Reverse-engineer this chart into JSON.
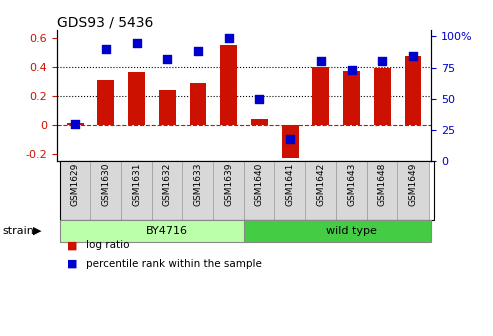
{
  "title": "GDS93 / 5436",
  "samples": [
    "GSM1629",
    "GSM1630",
    "GSM1631",
    "GSM1632",
    "GSM1633",
    "GSM1639",
    "GSM1640",
    "GSM1641",
    "GSM1642",
    "GSM1643",
    "GSM1648",
    "GSM1649"
  ],
  "log_ratio": [
    0.01,
    0.31,
    0.36,
    0.24,
    0.29,
    0.55,
    0.04,
    -0.23,
    0.4,
    0.37,
    0.39,
    0.47
  ],
  "percentile": [
    30,
    90,
    95,
    82,
    88,
    99,
    50,
    18,
    80,
    73,
    80,
    84
  ],
  "bar_color": "#cc1100",
  "dot_color": "#0000cc",
  "ylim_left": [
    -0.25,
    0.65
  ],
  "ylim_right": [
    0,
    105
  ],
  "yticks_left": [
    -0.2,
    0.0,
    0.2,
    0.4,
    0.6
  ],
  "ytick_labels_left": [
    "-0.2",
    "0",
    "0.2",
    "0.4",
    "0.6"
  ],
  "yticks_right": [
    0,
    25,
    50,
    75,
    100
  ],
  "ytick_labels_right": [
    "0",
    "25",
    "50",
    "75",
    "100%"
  ],
  "hlines": [
    0.0,
    0.2,
    0.4
  ],
  "hline_styles": [
    "dashed",
    "dotted",
    "dotted"
  ],
  "hline_colors": [
    "#cc1100",
    "black",
    "black"
  ],
  "strain_groups": [
    {
      "label": "BY4716",
      "start": 0,
      "end": 6,
      "color": "#bbffaa"
    },
    {
      "label": "wild type",
      "start": 6,
      "end": 12,
      "color": "#44cc44"
    }
  ],
  "strain_label": "strain",
  "legend_items": [
    {
      "label": "log ratio",
      "color": "#cc1100"
    },
    {
      "label": "percentile rank within the sample",
      "color": "#0000cc"
    }
  ],
  "bg_color": "#ffffff",
  "tick_label_color_left": "#cc1100",
  "tick_label_color_right": "#0000cc",
  "bar_width": 0.55,
  "dot_size": 30,
  "label_box_color": "#d8d8d8",
  "label_box_edge": "#999999"
}
